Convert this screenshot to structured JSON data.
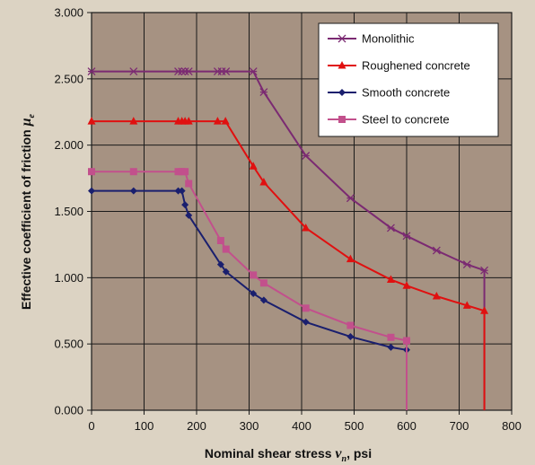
{
  "chart_data": {
    "type": "line",
    "xlabel_main": "Nominal shear stress ",
    "xlabel_sym": "v",
    "xlabel_sub": "n",
    "xlabel_unit": ", psi",
    "ylabel_main": "Effective coefficient of friction ",
    "ylabel_sym": "μ",
    "ylabel_sub": "e",
    "xlim": [
      0,
      800
    ],
    "ylim": [
      0,
      3
    ],
    "xticks": [
      "0",
      "100",
      "200",
      "300",
      "400",
      "500",
      "600",
      "700",
      "800"
    ],
    "yticks": [
      "0.000",
      "0.500",
      "1.000",
      "1.500",
      "2.000",
      "2.500",
      "3.000"
    ],
    "grid": true,
    "legend_position": "top-right",
    "plot_bg": "#a69282",
    "page_bg": "#dcd3c3",
    "series": [
      {
        "name": "Monolithic",
        "color": "#7b2a72",
        "marker": "asterisk",
        "x": [
          0,
          80,
          165,
          172,
          178,
          185,
          240,
          248,
          256,
          308,
          328,
          408,
          493,
          570,
          600,
          657,
          715,
          748,
          748
        ],
        "y": [
          2.556,
          2.556,
          2.556,
          2.556,
          2.556,
          2.556,
          2.556,
          2.556,
          2.556,
          2.556,
          2.4,
          1.92,
          1.6,
          1.375,
          1.315,
          1.205,
          1.1,
          1.055,
          0
        ]
      },
      {
        "name": "Roughened concrete",
        "color": "#e01010",
        "marker": "triangle",
        "x": [
          0,
          80,
          165,
          172,
          178,
          185,
          240,
          255,
          308,
          328,
          408,
          493,
          570,
          600,
          657,
          715,
          748,
          748
        ],
        "y": [
          2.18,
          2.18,
          2.18,
          2.18,
          2.18,
          2.18,
          2.18,
          2.18,
          1.84,
          1.72,
          1.375,
          1.14,
          0.985,
          0.94,
          0.86,
          0.79,
          0.75,
          0
        ]
      },
      {
        "name": "Smooth concrete",
        "color": "#1a1f6e",
        "marker": "diamond",
        "x": [
          0,
          80,
          165,
          172,
          178,
          185,
          246,
          256,
          308,
          328,
          408,
          493,
          570,
          600
        ],
        "y": [
          1.655,
          1.655,
          1.655,
          1.655,
          1.55,
          1.47,
          1.1,
          1.045,
          0.88,
          0.83,
          0.665,
          0.555,
          0.475,
          0.455
        ]
      },
      {
        "name": "Steel to concrete",
        "color": "#c2508c",
        "marker": "square",
        "x": [
          0,
          80,
          165,
          172,
          178,
          185,
          246,
          256,
          308,
          328,
          408,
          493,
          570,
          600,
          600
        ],
        "y": [
          1.8,
          1.8,
          1.8,
          1.8,
          1.8,
          1.71,
          1.28,
          1.215,
          1.02,
          0.96,
          0.77,
          0.64,
          0.55,
          0.525,
          0
        ]
      }
    ]
  }
}
